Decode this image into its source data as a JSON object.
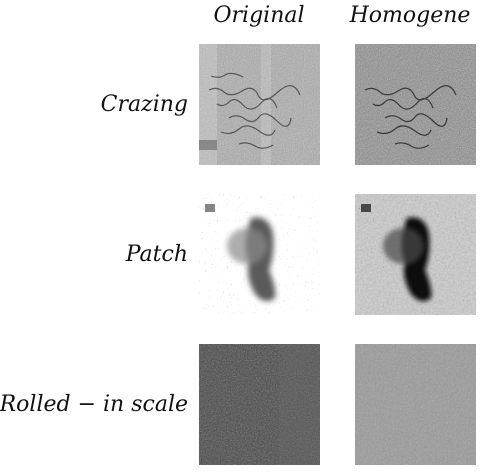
{
  "columns": [
    "Original",
    "Homogene"
  ],
  "rows": [
    {
      "label": "Crazing",
      "texture": "crazing"
    },
    {
      "label": "Patch",
      "texture": "patch"
    },
    {
      "label": "Rolled − in scale",
      "texture": "rolled-in-scale"
    }
  ]
}
